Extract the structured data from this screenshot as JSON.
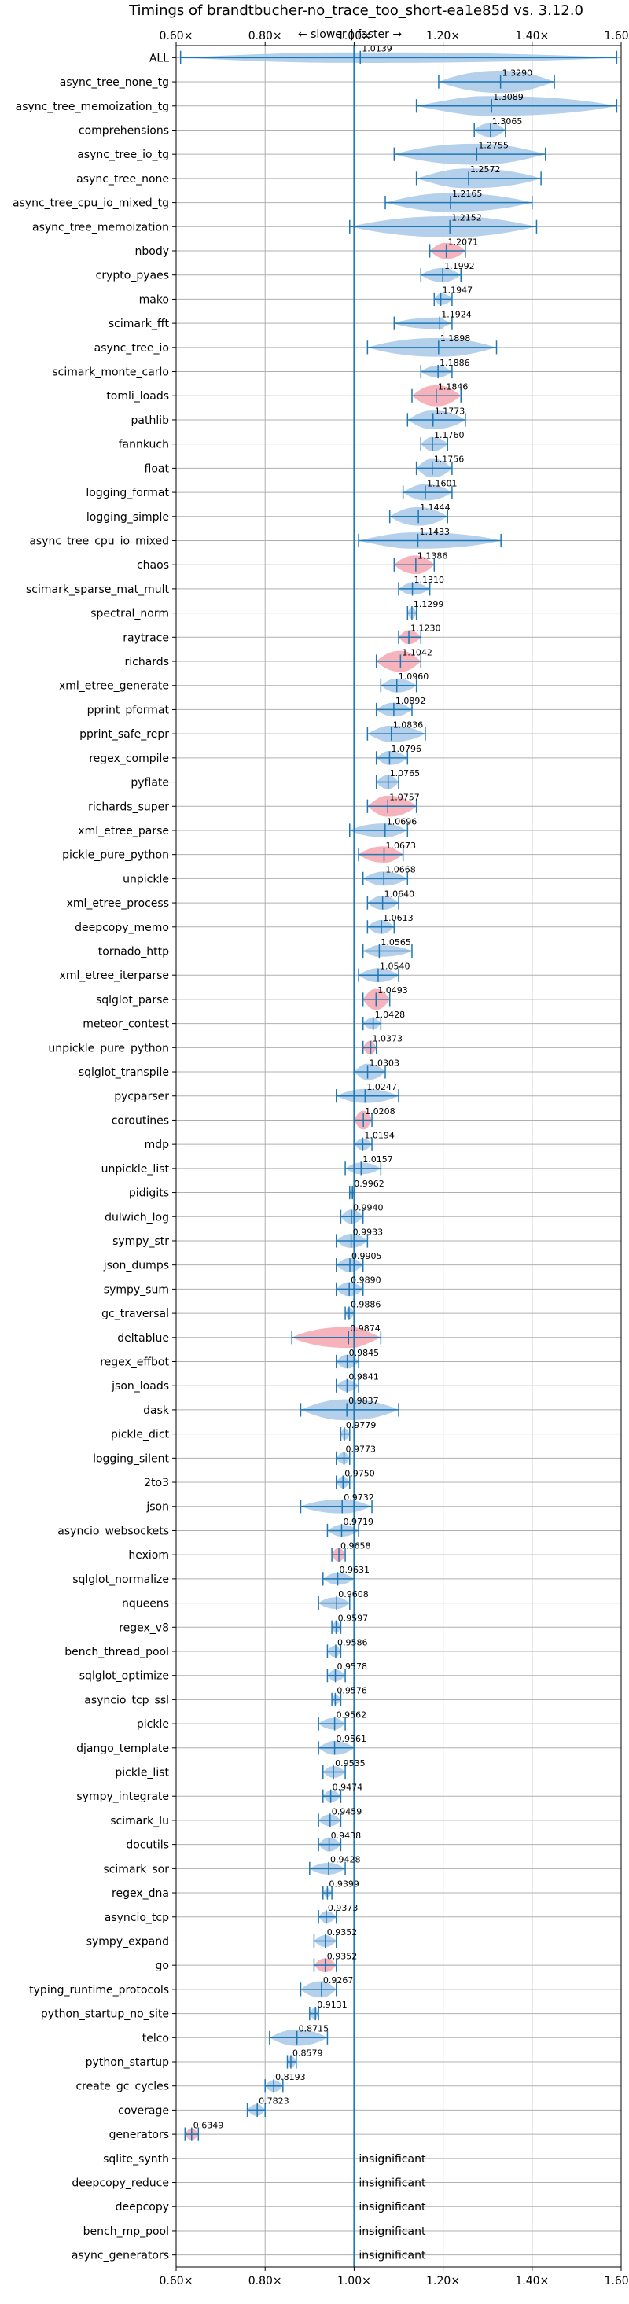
{
  "chart_data": {
    "type": "violin",
    "title": "Timings of brandtbucher-no_trace_too_short-ea1e85d vs. 3.12.0",
    "subtitle": "← slower | faster →",
    "xlim": [
      0.6,
      1.6
    ],
    "xticks": [
      0.6,
      0.8,
      1.0,
      1.2,
      1.4,
      1.6
    ],
    "xtick_labels": [
      "0.60×",
      "0.80×",
      "1.00×",
      "1.20×",
      "1.40×",
      "1.60×"
    ],
    "reference_line": 1.0,
    "grid": true,
    "colors": {
      "faster": "#a8c8e8",
      "slower": "#f4a6b0",
      "whisker": "#1f77b4"
    },
    "insignificant_label": "insignificant",
    "benchmarks": [
      {
        "name": "ALL",
        "value": 1.0139,
        "label": "1.0139",
        "min": 0.61,
        "max": 1.59,
        "width": 0.45,
        "color": "blue"
      },
      {
        "name": "async_tree_none_tg",
        "value": 1.329,
        "label": "1.3290",
        "min": 1.19,
        "max": 1.45,
        "width": 0.95,
        "color": "blue"
      },
      {
        "name": "async_tree_memoization_tg",
        "value": 1.3089,
        "label": "1.3089",
        "min": 1.14,
        "max": 1.59,
        "width": 0.85,
        "color": "blue"
      },
      {
        "name": "comprehensions",
        "value": 1.3065,
        "label": "1.3065",
        "min": 1.27,
        "max": 1.34,
        "width": 0.6,
        "color": "blue"
      },
      {
        "name": "async_tree_io_tg",
        "value": 1.2755,
        "label": "1.2755",
        "min": 1.09,
        "max": 1.43,
        "width": 0.9,
        "color": "blue"
      },
      {
        "name": "async_tree_none",
        "value": 1.2572,
        "label": "1.2572",
        "min": 1.14,
        "max": 1.42,
        "width": 0.85,
        "color": "blue"
      },
      {
        "name": "async_tree_cpu_io_mixed_tg",
        "value": 1.2165,
        "label": "1.2165",
        "min": 1.07,
        "max": 1.4,
        "width": 0.8,
        "color": "blue"
      },
      {
        "name": "async_tree_memoization",
        "value": 1.2152,
        "label": "1.2152",
        "min": 0.99,
        "max": 1.41,
        "width": 0.9,
        "color": "blue"
      },
      {
        "name": "nbody",
        "value": 1.2071,
        "label": "1.2071",
        "min": 1.17,
        "max": 1.25,
        "width": 0.7,
        "color": "red"
      },
      {
        "name": "crypto_pyaes",
        "value": 1.1992,
        "label": "1.1992",
        "min": 1.15,
        "max": 1.24,
        "width": 0.6,
        "color": "blue"
      },
      {
        "name": "mako",
        "value": 1.1947,
        "label": "1.1947",
        "min": 1.18,
        "max": 1.22,
        "width": 0.5,
        "color": "blue"
      },
      {
        "name": "scimark_fft",
        "value": 1.1924,
        "label": "1.1924",
        "min": 1.09,
        "max": 1.22,
        "width": 0.5,
        "color": "blue"
      },
      {
        "name": "async_tree_io",
        "value": 1.1898,
        "label": "1.1898",
        "min": 1.03,
        "max": 1.32,
        "width": 0.8,
        "color": "blue"
      },
      {
        "name": "scimark_monte_carlo",
        "value": 1.1886,
        "label": "1.1886",
        "min": 1.15,
        "max": 1.22,
        "width": 0.5,
        "color": "blue"
      },
      {
        "name": "tomli_loads",
        "value": 1.1846,
        "label": "1.1846",
        "min": 1.13,
        "max": 1.24,
        "width": 0.9,
        "color": "red"
      },
      {
        "name": "pathlib",
        "value": 1.1773,
        "label": "1.1773",
        "min": 1.12,
        "max": 1.25,
        "width": 0.8,
        "color": "blue"
      },
      {
        "name": "fannkuch",
        "value": 1.176,
        "label": "1.1760",
        "min": 1.15,
        "max": 1.21,
        "width": 0.6,
        "color": "blue"
      },
      {
        "name": "float",
        "value": 1.1756,
        "label": "1.1756",
        "min": 1.14,
        "max": 1.22,
        "width": 0.8,
        "color": "blue"
      },
      {
        "name": "logging_format",
        "value": 1.1601,
        "label": "1.1601",
        "min": 1.11,
        "max": 1.22,
        "width": 0.7,
        "color": "blue"
      },
      {
        "name": "logging_simple",
        "value": 1.1444,
        "label": "1.1444",
        "min": 1.08,
        "max": 1.21,
        "width": 0.8,
        "color": "blue"
      },
      {
        "name": "async_tree_cpu_io_mixed",
        "value": 1.1433,
        "label": "1.1433",
        "min": 1.01,
        "max": 1.33,
        "width": 0.7,
        "color": "blue"
      },
      {
        "name": "chaos",
        "value": 1.1386,
        "label": "1.1386",
        "min": 1.09,
        "max": 1.18,
        "width": 0.8,
        "color": "red"
      },
      {
        "name": "scimark_sparse_mat_mult",
        "value": 1.131,
        "label": "1.1310",
        "min": 1.1,
        "max": 1.17,
        "width": 0.5,
        "color": "blue"
      },
      {
        "name": "spectral_norm",
        "value": 1.1299,
        "label": "1.1299",
        "min": 1.12,
        "max": 1.14,
        "width": 0.5,
        "color": "blue"
      },
      {
        "name": "raytrace",
        "value": 1.123,
        "label": "1.1230",
        "min": 1.1,
        "max": 1.15,
        "width": 0.6,
        "color": "red"
      },
      {
        "name": "richards",
        "value": 1.1042,
        "label": "1.1042",
        "min": 1.05,
        "max": 1.15,
        "width": 0.9,
        "color": "red"
      },
      {
        "name": "xml_etree_generate",
        "value": 1.096,
        "label": "1.0960",
        "min": 1.06,
        "max": 1.14,
        "width": 0.6,
        "color": "blue"
      },
      {
        "name": "pprint_pformat",
        "value": 1.0892,
        "label": "1.0892",
        "min": 1.05,
        "max": 1.13,
        "width": 0.6,
        "color": "blue"
      },
      {
        "name": "pprint_safe_repr",
        "value": 1.0836,
        "label": "1.0836",
        "min": 1.03,
        "max": 1.16,
        "width": 0.7,
        "color": "blue"
      },
      {
        "name": "regex_compile",
        "value": 1.0796,
        "label": "1.0796",
        "min": 1.05,
        "max": 1.12,
        "width": 0.6,
        "color": "blue"
      },
      {
        "name": "pyflate",
        "value": 1.0765,
        "label": "1.0765",
        "min": 1.05,
        "max": 1.1,
        "width": 0.6,
        "color": "blue"
      },
      {
        "name": "richards_super",
        "value": 1.0757,
        "label": "1.0757",
        "min": 1.03,
        "max": 1.14,
        "width": 0.9,
        "color": "red"
      },
      {
        "name": "xml_etree_parse",
        "value": 1.0696,
        "label": "1.0696",
        "min": 0.99,
        "max": 1.12,
        "width": 0.6,
        "color": "blue"
      },
      {
        "name": "pickle_pure_python",
        "value": 1.0673,
        "label": "1.0673",
        "min": 1.01,
        "max": 1.11,
        "width": 0.7,
        "color": "red"
      },
      {
        "name": "unpickle",
        "value": 1.0668,
        "label": "1.0668",
        "min": 1.02,
        "max": 1.12,
        "width": 0.6,
        "color": "blue"
      },
      {
        "name": "xml_etree_process",
        "value": 1.064,
        "label": "1.0640",
        "min": 1.03,
        "max": 1.1,
        "width": 0.6,
        "color": "blue"
      },
      {
        "name": "deepcopy_memo",
        "value": 1.0613,
        "label": "1.0613",
        "min": 1.03,
        "max": 1.09,
        "width": 0.6,
        "color": "blue"
      },
      {
        "name": "tornado_http",
        "value": 1.0565,
        "label": "1.0565",
        "min": 1.02,
        "max": 1.13,
        "width": 0.5,
        "color": "blue"
      },
      {
        "name": "xml_etree_iterparse",
        "value": 1.054,
        "label": "1.0540",
        "min": 1.01,
        "max": 1.1,
        "width": 0.6,
        "color": "blue"
      },
      {
        "name": "sqlglot_parse",
        "value": 1.0493,
        "label": "1.0493",
        "min": 1.02,
        "max": 1.08,
        "width": 0.9,
        "color": "red"
      },
      {
        "name": "meteor_contest",
        "value": 1.0428,
        "label": "1.0428",
        "min": 1.02,
        "max": 1.06,
        "width": 0.5,
        "color": "blue"
      },
      {
        "name": "unpickle_pure_python",
        "value": 1.0373,
        "label": "1.0373",
        "min": 1.02,
        "max": 1.05,
        "width": 0.6,
        "color": "red"
      },
      {
        "name": "sqlglot_transpile",
        "value": 1.0303,
        "label": "1.0303",
        "min": 1.0,
        "max": 1.07,
        "width": 0.7,
        "color": "blue"
      },
      {
        "name": "pycparser",
        "value": 1.0247,
        "label": "1.0247",
        "min": 0.96,
        "max": 1.1,
        "width": 0.6,
        "color": "blue"
      },
      {
        "name": "coroutines",
        "value": 1.0208,
        "label": "1.0208",
        "min": 1.0,
        "max": 1.04,
        "width": 0.8,
        "color": "red"
      },
      {
        "name": "mdp",
        "value": 1.0194,
        "label": "1.0194",
        "min": 1.0,
        "max": 1.04,
        "width": 0.5,
        "color": "blue"
      },
      {
        "name": "unpickle_list",
        "value": 1.0157,
        "label": "1.0157",
        "min": 0.98,
        "max": 1.06,
        "width": 0.5,
        "color": "blue"
      },
      {
        "name": "pidigits",
        "value": 0.9962,
        "label": "0.9962",
        "min": 0.99,
        "max": 1.0,
        "width": 0.5,
        "color": "blue"
      },
      {
        "name": "dulwich_log",
        "value": 0.994,
        "label": "0.9940",
        "min": 0.97,
        "max": 1.02,
        "width": 0.6,
        "color": "blue"
      },
      {
        "name": "sympy_str",
        "value": 0.9933,
        "label": "0.9933",
        "min": 0.96,
        "max": 1.03,
        "width": 0.6,
        "color": "blue"
      },
      {
        "name": "json_dumps",
        "value": 0.9905,
        "label": "0.9905",
        "min": 0.96,
        "max": 1.02,
        "width": 0.6,
        "color": "blue"
      },
      {
        "name": "sympy_sum",
        "value": 0.989,
        "label": "0.9890",
        "min": 0.96,
        "max": 1.02,
        "width": 0.6,
        "color": "blue"
      },
      {
        "name": "gc_traversal",
        "value": 0.9886,
        "label": "0.9886",
        "min": 0.98,
        "max": 1.0,
        "width": 0.5,
        "color": "blue"
      },
      {
        "name": "deltablue",
        "value": 0.9874,
        "label": "0.9874",
        "min": 0.86,
        "max": 1.06,
        "width": 0.9,
        "color": "red"
      },
      {
        "name": "regex_effbot",
        "value": 0.9845,
        "label": "0.9845",
        "min": 0.96,
        "max": 1.01,
        "width": 0.6,
        "color": "blue"
      },
      {
        "name": "json_loads",
        "value": 0.9841,
        "label": "0.9841",
        "min": 0.96,
        "max": 1.01,
        "width": 0.5,
        "color": "blue"
      },
      {
        "name": "dask",
        "value": 0.9837,
        "label": "0.9837",
        "min": 0.88,
        "max": 1.1,
        "width": 0.9,
        "color": "blue"
      },
      {
        "name": "pickle_dict",
        "value": 0.9779,
        "label": "0.9779",
        "min": 0.97,
        "max": 0.99,
        "width": 0.5,
        "color": "blue"
      },
      {
        "name": "logging_silent",
        "value": 0.9773,
        "label": "0.9773",
        "min": 0.96,
        "max": 0.99,
        "width": 0.5,
        "color": "blue"
      },
      {
        "name": "2to3",
        "value": 0.975,
        "label": "0.9750",
        "min": 0.96,
        "max": 0.99,
        "width": 0.5,
        "color": "blue"
      },
      {
        "name": "json",
        "value": 0.9732,
        "label": "0.9732",
        "min": 0.88,
        "max": 1.04,
        "width": 0.6,
        "color": "blue"
      },
      {
        "name": "asyncio_websockets",
        "value": 0.9719,
        "label": "0.9719",
        "min": 0.94,
        "max": 1.01,
        "width": 0.5,
        "color": "blue"
      },
      {
        "name": "hexiom",
        "value": 0.9658,
        "label": "0.9658",
        "min": 0.95,
        "max": 0.98,
        "width": 0.6,
        "color": "red"
      },
      {
        "name": "sqlglot_normalize",
        "value": 0.9631,
        "label": "0.9631",
        "min": 0.93,
        "max": 1.0,
        "width": 0.5,
        "color": "blue"
      },
      {
        "name": "nqueens",
        "value": 0.9608,
        "label": "0.9608",
        "min": 0.92,
        "max": 0.99,
        "width": 0.5,
        "color": "blue"
      },
      {
        "name": "regex_v8",
        "value": 0.9597,
        "label": "0.9597",
        "min": 0.95,
        "max": 0.97,
        "width": 0.5,
        "color": "blue"
      },
      {
        "name": "bench_thread_pool",
        "value": 0.9586,
        "label": "0.9586",
        "min": 0.94,
        "max": 0.97,
        "width": 0.5,
        "color": "blue"
      },
      {
        "name": "sqlglot_optimize",
        "value": 0.9578,
        "label": "0.9578",
        "min": 0.94,
        "max": 0.98,
        "width": 0.5,
        "color": "blue"
      },
      {
        "name": "asyncio_tcp_ssl",
        "value": 0.9576,
        "label": "0.9576",
        "min": 0.95,
        "max": 0.97,
        "width": 0.4,
        "color": "blue"
      },
      {
        "name": "pickle",
        "value": 0.9562,
        "label": "0.9562",
        "min": 0.92,
        "max": 0.98,
        "width": 0.5,
        "color": "blue"
      },
      {
        "name": "django_template",
        "value": 0.9561,
        "label": "0.9561",
        "min": 0.92,
        "max": 1.0,
        "width": 0.6,
        "color": "blue"
      },
      {
        "name": "pickle_list",
        "value": 0.9535,
        "label": "0.9535",
        "min": 0.93,
        "max": 0.98,
        "width": 0.5,
        "color": "blue"
      },
      {
        "name": "sympy_integrate",
        "value": 0.9474,
        "label": "0.9474",
        "min": 0.93,
        "max": 0.97,
        "width": 0.5,
        "color": "blue"
      },
      {
        "name": "scimark_lu",
        "value": 0.9459,
        "label": "0.9459",
        "min": 0.92,
        "max": 0.97,
        "width": 0.5,
        "color": "blue"
      },
      {
        "name": "docutils",
        "value": 0.9438,
        "label": "0.9438",
        "min": 0.92,
        "max": 0.97,
        "width": 0.6,
        "color": "blue"
      },
      {
        "name": "scimark_sor",
        "value": 0.9428,
        "label": "0.9428",
        "min": 0.9,
        "max": 0.98,
        "width": 0.5,
        "color": "blue"
      },
      {
        "name": "regex_dna",
        "value": 0.9399,
        "label": "0.9399",
        "min": 0.93,
        "max": 0.95,
        "width": 0.4,
        "color": "blue"
      },
      {
        "name": "asyncio_tcp",
        "value": 0.9373,
        "label": "0.9373",
        "min": 0.92,
        "max": 0.96,
        "width": 0.5,
        "color": "blue"
      },
      {
        "name": "sympy_expand",
        "value": 0.9352,
        "label": "0.9352",
        "min": 0.91,
        "max": 0.96,
        "width": 0.5,
        "color": "blue"
      },
      {
        "name": "go",
        "value": 0.9352,
        "label": "0.9352",
        "min": 0.91,
        "max": 0.96,
        "width": 0.6,
        "color": "red"
      },
      {
        "name": "typing_runtime_protocols",
        "value": 0.9267,
        "label": "0.9267",
        "min": 0.88,
        "max": 0.96,
        "width": 0.7,
        "color": "blue"
      },
      {
        "name": "python_startup_no_site",
        "value": 0.9131,
        "label": "0.9131",
        "min": 0.9,
        "max": 0.92,
        "width": 0.5,
        "color": "blue"
      },
      {
        "name": "telco",
        "value": 0.8715,
        "label": "0.8715",
        "min": 0.81,
        "max": 0.94,
        "width": 0.7,
        "color": "blue"
      },
      {
        "name": "python_startup",
        "value": 0.8579,
        "label": "0.8579",
        "min": 0.85,
        "max": 0.87,
        "width": 0.5,
        "color": "blue"
      },
      {
        "name": "create_gc_cycles",
        "value": 0.8193,
        "label": "0.8193",
        "min": 0.8,
        "max": 0.84,
        "width": 0.5,
        "color": "blue"
      },
      {
        "name": "coverage",
        "value": 0.7823,
        "label": "0.7823",
        "min": 0.76,
        "max": 0.8,
        "width": 0.5,
        "color": "blue"
      },
      {
        "name": "generators",
        "value": 0.6349,
        "label": "0.6349",
        "min": 0.62,
        "max": 0.65,
        "width": 0.5,
        "color": "red"
      },
      {
        "name": "sqlite_synth",
        "insignificant": true
      },
      {
        "name": "deepcopy_reduce",
        "insignificant": true
      },
      {
        "name": "deepcopy",
        "insignificant": true
      },
      {
        "name": "bench_mp_pool",
        "insignificant": true
      },
      {
        "name": "async_generators",
        "insignificant": true
      }
    ]
  }
}
